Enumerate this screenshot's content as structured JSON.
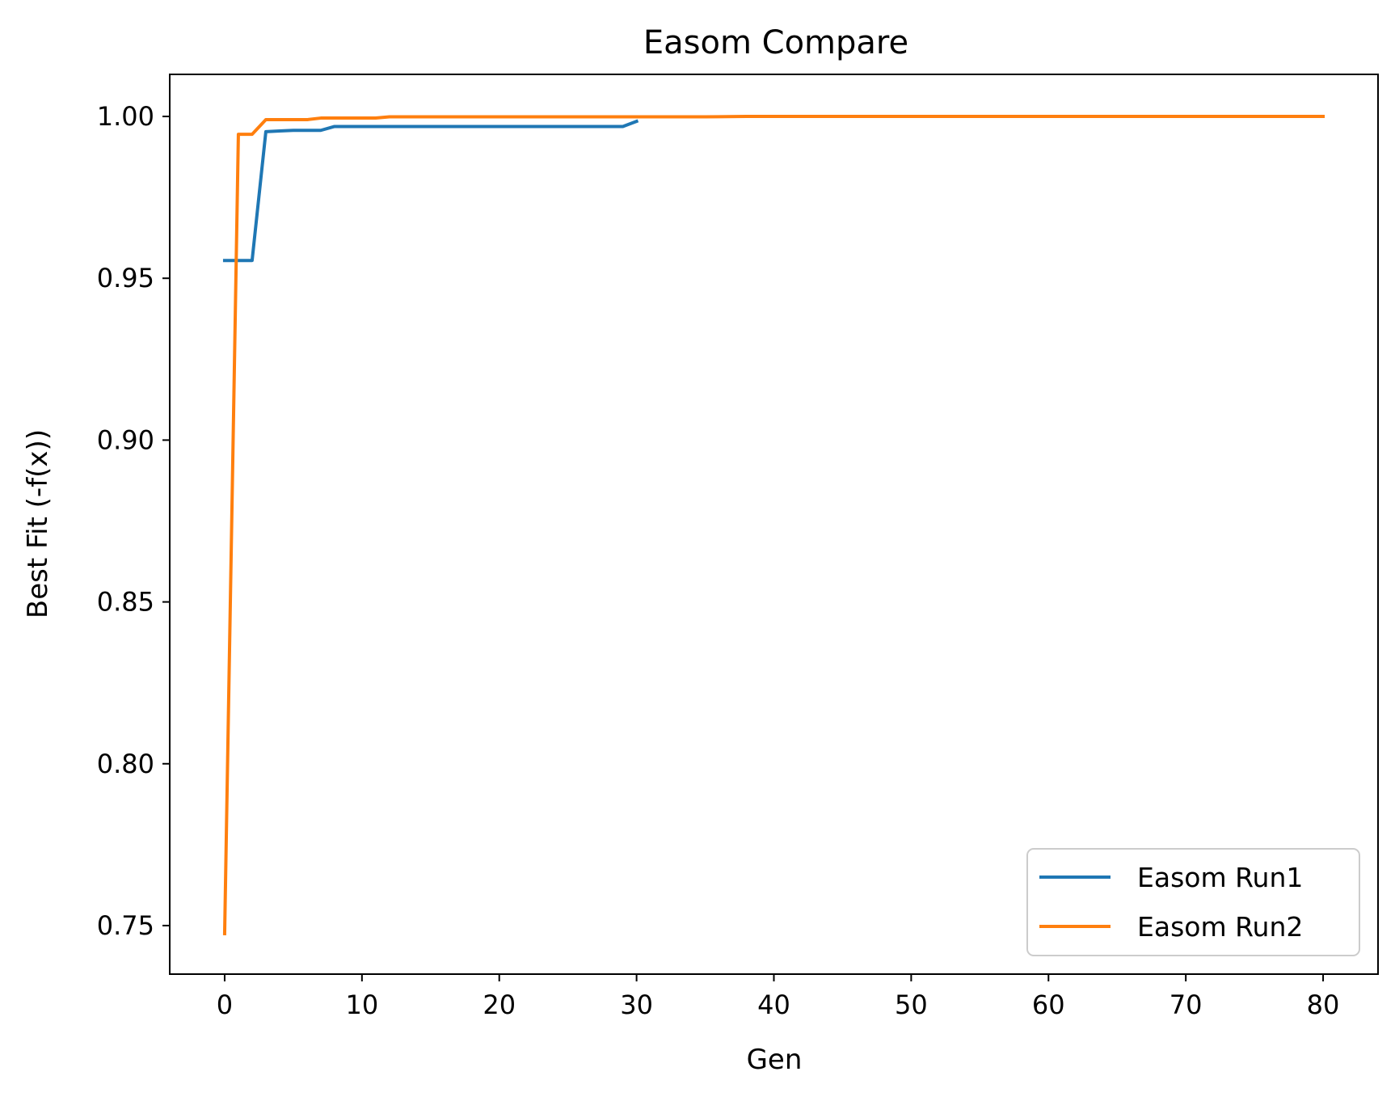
{
  "chart_data": {
    "type": "line",
    "title": "Easom Compare",
    "xlabel": "Gen",
    "ylabel": "Best Fit (-f(x))",
    "xlim": [
      -4,
      84
    ],
    "ylim": [
      0.735,
      1.013
    ],
    "xticks": [
      0,
      10,
      20,
      30,
      40,
      50,
      60,
      70,
      80
    ],
    "xtick_labels": [
      "0",
      "10",
      "20",
      "30",
      "40",
      "50",
      "60",
      "70",
      "80"
    ],
    "yticks": [
      0.75,
      0.8,
      0.85,
      0.9,
      0.95,
      1.0
    ],
    "ytick_labels": [
      "0.75",
      "0.80",
      "0.85",
      "0.90",
      "0.95",
      "1.00"
    ],
    "grid": false,
    "legend_position": "lower-right",
    "series": [
      {
        "name": "Easom Run1",
        "color": "#1f77b4",
        "x": [
          0,
          1,
          2,
          3,
          4,
          5,
          6,
          7,
          8,
          9,
          10,
          11,
          12,
          13,
          14,
          15,
          16,
          17,
          18,
          19,
          20,
          21,
          22,
          23,
          24,
          25,
          26,
          27,
          28,
          29,
          30
        ],
        "y": [
          0.9555,
          0.9555,
          0.9555,
          0.9953,
          0.9955,
          0.9957,
          0.9957,
          0.9957,
          0.9969,
          0.9969,
          0.9969,
          0.9969,
          0.9969,
          0.9969,
          0.9969,
          0.9969,
          0.9969,
          0.9969,
          0.9969,
          0.9969,
          0.9969,
          0.9969,
          0.9969,
          0.9969,
          0.9969,
          0.9969,
          0.9969,
          0.9969,
          0.9969,
          0.9969,
          0.9985
        ]
      },
      {
        "name": "Easom Run2",
        "color": "#ff7f0e",
        "x": [
          0,
          1,
          2,
          3,
          4,
          5,
          6,
          7,
          8,
          9,
          10,
          11,
          12,
          20,
          30,
          35,
          38,
          40,
          50,
          60,
          70,
          80
        ],
        "y": [
          0.7475,
          0.9945,
          0.9945,
          0.999,
          0.999,
          0.999,
          0.999,
          0.9995,
          0.9995,
          0.9995,
          0.9995,
          0.9995,
          0.9999,
          0.9999,
          0.9999,
          0.9999,
          1.0,
          1.0,
          1.0,
          1.0,
          1.0,
          1.0
        ]
      }
    ]
  }
}
